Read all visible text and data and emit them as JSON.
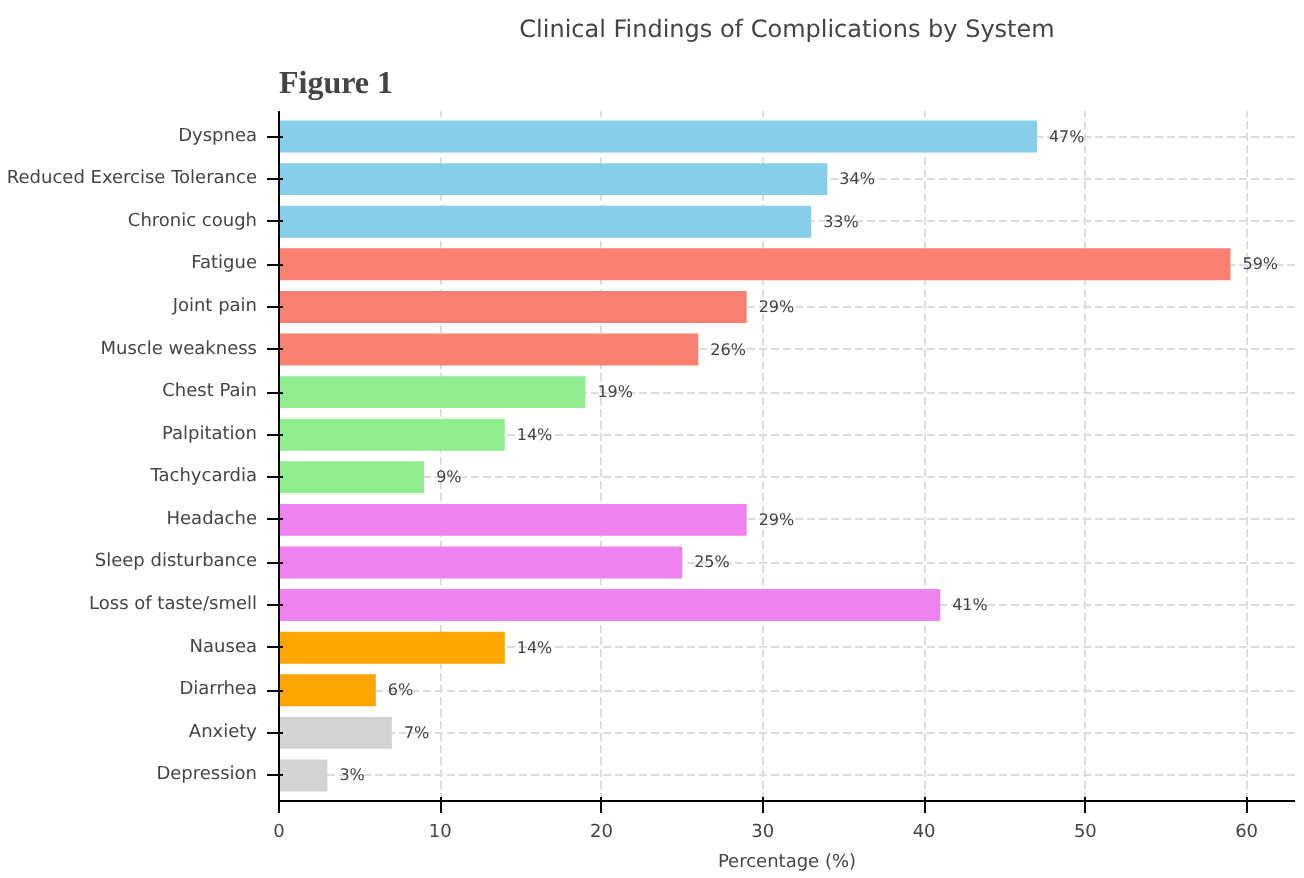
{
  "chart_data": {
    "type": "bar",
    "orientation": "horizontal",
    "title": "Clinical Findings of Complications by System",
    "xlabel": "Percentage (%)",
    "annotations": [
      "Figure 1"
    ],
    "categories": [
      "Dyspnea",
      "Reduced Exercise Tolerance",
      "Chronic cough",
      "Fatigue",
      "Joint pain",
      "Muscle weakness",
      "Chest Pain",
      "Palpitation",
      "Tachycardia",
      "Headache",
      "Sleep disturbance",
      "Loss of taste/smell",
      "Nausea",
      "Diarrhea",
      "Anxiety",
      "Depression"
    ],
    "values": [
      47,
      34,
      33,
      59,
      29,
      26,
      19,
      14,
      9,
      29,
      25,
      41,
      14,
      6,
      7,
      3
    ],
    "value_labels": [
      "47%",
      "34%",
      "33%",
      "59%",
      "29%",
      "26%",
      "19%",
      "14%",
      "9%",
      "29%",
      "25%",
      "41%",
      "14%",
      "6%",
      "7%",
      "3%"
    ],
    "colors": [
      "#87ceeb",
      "#87ceeb",
      "#87ceeb",
      "#fa8072",
      "#fa8072",
      "#fa8072",
      "#90ee90",
      "#90ee90",
      "#90ee90",
      "#ee82ee",
      "#ee82ee",
      "#ee82ee",
      "#ffa500",
      "#ffa500",
      "#d3d3d3",
      "#d3d3d3"
    ],
    "xlim": [
      0,
      63
    ],
    "xticks": [
      0,
      10,
      20,
      30,
      40,
      50,
      60
    ],
    "grid": true
  }
}
